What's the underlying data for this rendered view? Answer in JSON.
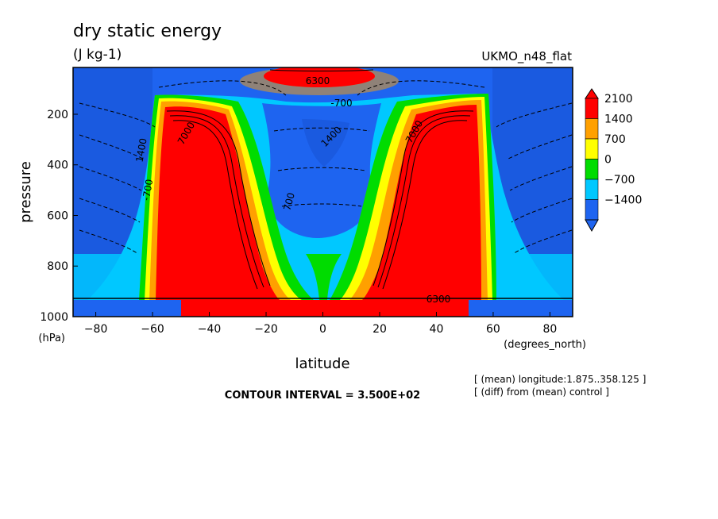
{
  "chart_data": {
    "type": "contour",
    "title": "dry static energy",
    "units": "(J kg-1)",
    "dataset": "UKMO_n48_flat",
    "xlabel": "latitude",
    "ylabel": "pressure",
    "x_units": "(degrees_north)",
    "y_units": "(hPa)",
    "xlim": [
      -88,
      88
    ],
    "ylim": [
      1000,
      15
    ],
    "x_ticks": [
      -80,
      -60,
      -40,
      -20,
      0,
      20,
      40,
      60,
      80
    ],
    "y_ticks": [
      200,
      400,
      600,
      800,
      1000
    ],
    "colorbar": {
      "labels": [
        "2100",
        "1400",
        "700",
        "0",
        "-700",
        "-1400"
      ],
      "colors": [
        "#1e64f0",
        "#00c8ff",
        "#00dc00",
        "#ffff00",
        "#ffa000",
        "#ff0000"
      ]
    },
    "contour_labels": [
      {
        "text": "6300",
        "lat": 4,
        "p": 70
      },
      {
        "text": "-700",
        "lat": 8,
        "p": 150
      },
      {
        "text": "1400",
        "lat": 4,
        "p": 280
      },
      {
        "text": "7000",
        "lat": -45,
        "p": 260
      },
      {
        "text": "7000",
        "lat": 38,
        "p": 250
      },
      {
        "text": "-700",
        "lat": -62,
        "p": 420
      },
      {
        "text": "700",
        "lat": -12,
        "p": 560
      },
      {
        "text": "6300",
        "lat": 38,
        "p": 920
      },
      {
        "text": "1400",
        "lat": -60,
        "p": 300
      }
    ],
    "contour_interval": "CONTOUR INTERVAL = 3.500E+02",
    "notes": [
      "[ (mean) longitude:1.875..358.125 ]",
      "[ (diff) from (mean) control ]"
    ]
  }
}
